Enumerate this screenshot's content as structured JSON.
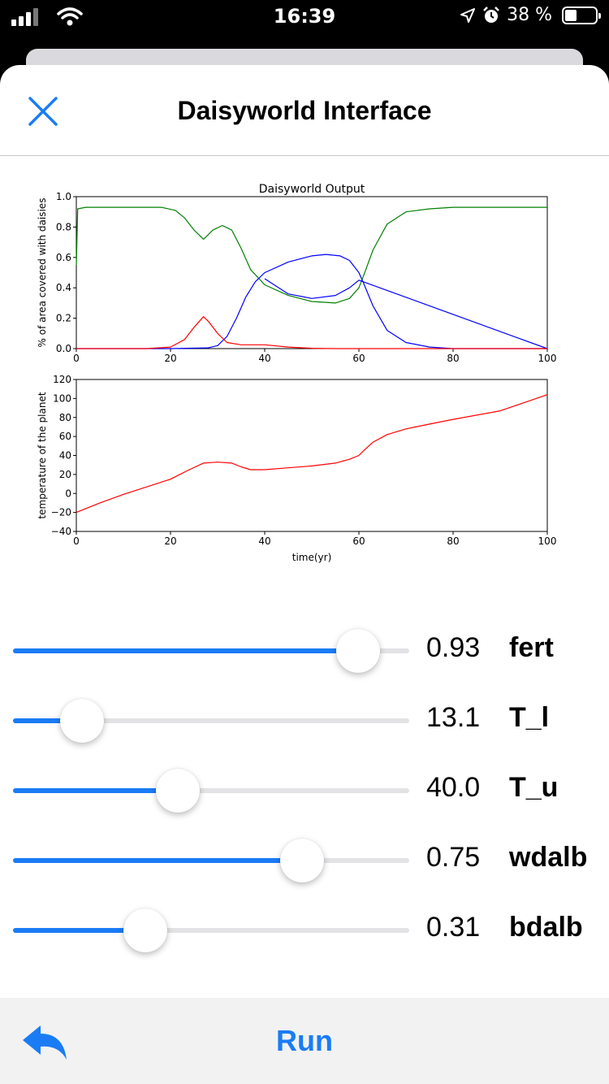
{
  "status_bar": {
    "time": "16:39",
    "battery_text": "38 %",
    "battery_level": 0.38,
    "icons": [
      "signal-icon",
      "wifi-icon",
      "location-icon",
      "alarm-icon",
      "battery-icon"
    ]
  },
  "navbar": {
    "title": "Daisyworld Interface",
    "close_icon": "close-icon"
  },
  "accent_color": "#1a7cf5",
  "chart_data": [
    {
      "type": "line",
      "title": "Daisyworld Output",
      "xlabel": "",
      "ylabel": "% of area covered with daisies",
      "xlim": [
        0,
        100
      ],
      "ylim": [
        0,
        1.0
      ],
      "xticks": [
        "0",
        "20",
        "40",
        "60",
        "80",
        "100"
      ],
      "yticks": [
        "0.0",
        "0.2",
        "0.4",
        "0.6",
        "0.8",
        "1.0"
      ],
      "series": [
        {
          "color": "#008000",
          "x": [
            0,
            0.3,
            2,
            10,
            18,
            21,
            23,
            25,
            27,
            28,
            29,
            31,
            33,
            35,
            37,
            40,
            45,
            50,
            55,
            58,
            60,
            61,
            63,
            66,
            70,
            75,
            80,
            90,
            100
          ],
          "y": [
            0.55,
            0.92,
            0.93,
            0.93,
            0.93,
            0.91,
            0.86,
            0.78,
            0.72,
            0.75,
            0.78,
            0.81,
            0.78,
            0.66,
            0.52,
            0.42,
            0.35,
            0.31,
            0.3,
            0.33,
            0.4,
            0.48,
            0.65,
            0.82,
            0.9,
            0.92,
            0.93,
            0.93,
            0.93
          ]
        },
        {
          "color": "#0000ff",
          "x": [
            0,
            20,
            28,
            30,
            32,
            34,
            36,
            38,
            40,
            45,
            50,
            53,
            56,
            58,
            60,
            61,
            63,
            66,
            70,
            75,
            80,
            90,
            100
          ],
          "y": [
            0,
            0,
            0.005,
            0.02,
            0.08,
            0.2,
            0.34,
            0.44,
            0.5,
            0.57,
            0.61,
            0.62,
            0.61,
            0.58,
            0.5,
            0.43,
            0.28,
            0.12,
            0.04,
            0.01,
            0,
            0,
            0
          ],
          "x_lower": [
            60,
            58,
            55,
            50,
            45,
            40
          ],
          "y_lower": [
            0.45,
            0.4,
            0.35,
            0.33,
            0.36,
            0.46
          ]
        },
        {
          "color": "#ff0000",
          "x": [
            0,
            15,
            20,
            23,
            25,
            27,
            28,
            30,
            32,
            35,
            40,
            45,
            50,
            55,
            60,
            70,
            80,
            100
          ],
          "y": [
            0,
            0,
            0.01,
            0.06,
            0.14,
            0.21,
            0.18,
            0.1,
            0.04,
            0.025,
            0.025,
            0.01,
            0.002,
            0,
            0,
            0,
            0,
            0
          ]
        }
      ]
    },
    {
      "type": "line",
      "title": "",
      "xlabel": "time(yr)",
      "ylabel": "temperature of the planet",
      "xlim": [
        0,
        100
      ],
      "ylim": [
        -40,
        120
      ],
      "xticks": [
        "0",
        "20",
        "40",
        "60",
        "80",
        "100"
      ],
      "yticks": [
        "−40",
        "−20",
        "0",
        "20",
        "40",
        "60",
        "80",
        "100",
        "120"
      ],
      "series": [
        {
          "color": "#ff0000",
          "x": [
            0,
            5,
            10,
            15,
            20,
            24,
            27,
            30,
            33,
            35,
            37,
            40,
            45,
            50,
            55,
            58,
            60,
            61,
            63,
            66,
            70,
            75,
            80,
            90,
            100
          ],
          "y": [
            -20,
            -10,
            -1,
            7,
            15,
            25,
            32,
            33,
            32,
            28,
            25,
            25,
            27,
            29,
            32,
            36,
            40,
            45,
            54,
            62,
            68,
            73,
            78,
            87,
            104
          ]
        }
      ]
    }
  ],
  "sliders": [
    {
      "name": "fert",
      "value": "0.93",
      "fraction": 0.87
    },
    {
      "name": "T_l",
      "value": "13.1",
      "fraction": 0.175
    },
    {
      "name": "T_u",
      "value": "40.0",
      "fraction": 0.415
    },
    {
      "name": "wdalb",
      "value": "0.75",
      "fraction": 0.73
    },
    {
      "name": "bdalb",
      "value": "0.31",
      "fraction": 0.335
    }
  ],
  "toolbar": {
    "run_label": "Run",
    "undo_icon": "undo-icon"
  }
}
